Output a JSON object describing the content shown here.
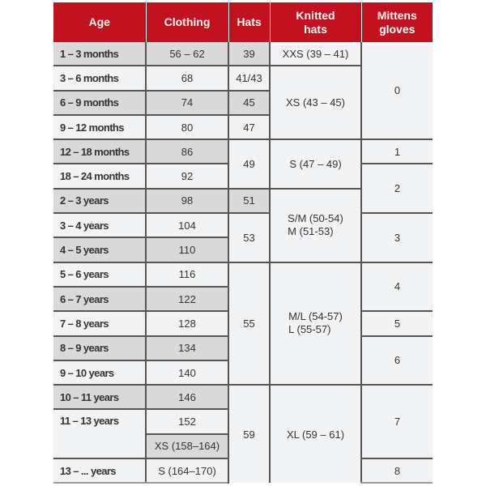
{
  "header": {
    "age": "Age",
    "clothing": "Clothing",
    "hats": "Hats",
    "knitted_hats": [
      "Knitted",
      "hats"
    ],
    "mittens": [
      "Mittens",
      "gloves"
    ]
  },
  "colors": {
    "header_bg": "#c3121f",
    "shaded_cell": "#d9d9d9",
    "plain_cell": "#f2f3f5"
  },
  "age": [
    "1 – 3 months",
    "3 – 6 months",
    "6 – 9 months",
    "9 – 12 months",
    "12 – 18 months",
    "18 – 24 months",
    "2 – 3 years",
    "3 – 4 years",
    "4 – 5 years",
    "5 – 6 years",
    "6 – 7 years",
    "7 – 8 years",
    "8 – 9 years",
    "9 – 10 years",
    "10 – 11 years",
    "11 – 13 years",
    "13 – ... years"
  ],
  "clothing": [
    "56 – 62",
    "68",
    "74",
    "80",
    "86",
    "92",
    "98",
    "104",
    "110",
    "116",
    "122",
    "128",
    "134",
    "140",
    "146",
    "152",
    "XS (158–164)",
    "S (164–170)"
  ],
  "hats": [
    "39",
    "41/43",
    "45",
    "47",
    "49",
    "51",
    "53",
    "55",
    "59"
  ],
  "knitted_hats": {
    "xxs": "XXS (39 – 41)",
    "xs": "XS (43 – 45)",
    "s": "S (47 – 49)",
    "sm": [
      "S/M (50-54)",
      "M (51-53)"
    ],
    "ml": [
      "M/L (54-57)",
      "L (55-57)"
    ],
    "xl": "XL (59 – 61)"
  },
  "mittens": [
    "0",
    "1",
    "2",
    "3",
    "4",
    "5",
    "6",
    "7",
    "8"
  ]
}
